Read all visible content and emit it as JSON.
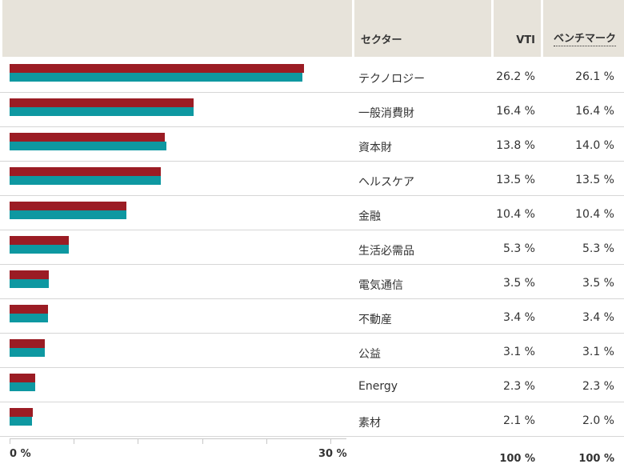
{
  "header": {
    "sector": "セクター",
    "vti": "VTI",
    "benchmark": "ベンチマーク"
  },
  "colors": {
    "vti": "#9b1c24",
    "benchmark": "#0e98a1",
    "header_bg": "#e7e3da"
  },
  "axis": {
    "min_label": "0 %",
    "max_label": "30 %"
  },
  "totals": {
    "vti": "100 %",
    "benchmark": "100 %"
  },
  "rows": [
    {
      "sector": "テクノロジー",
      "vti_label": "26.2 %",
      "bench_label": "26.1 %"
    },
    {
      "sector": "一般消費財",
      "vti_label": "16.4 %",
      "bench_label": "16.4 %"
    },
    {
      "sector": "資本財",
      "vti_label": "13.8 %",
      "bench_label": "14.0 %"
    },
    {
      "sector": "ヘルスケア",
      "vti_label": "13.5 %",
      "bench_label": "13.5 %"
    },
    {
      "sector": "金融",
      "vti_label": "10.4 %",
      "bench_label": "10.4 %"
    },
    {
      "sector": "生活必需品",
      "vti_label": "5.3 %",
      "bench_label": "5.3 %"
    },
    {
      "sector": "電気通信",
      "vti_label": "3.5 %",
      "bench_label": "3.5 %"
    },
    {
      "sector": "不動産",
      "vti_label": "3.4 %",
      "bench_label": "3.4 %"
    },
    {
      "sector": "公益",
      "vti_label": "3.1 %",
      "bench_label": "3.1 %"
    },
    {
      "sector": "Energy",
      "vti_label": "2.3 %",
      "bench_label": "2.3 %"
    },
    {
      "sector": "素材",
      "vti_label": "2.1 %",
      "bench_label": "2.0 %"
    }
  ],
  "chart_data": {
    "type": "bar",
    "orientation": "horizontal",
    "categories": [
      "テクノロジー",
      "一般消費財",
      "資本財",
      "ヘルスケア",
      "金融",
      "生活必需品",
      "電気通信",
      "不動産",
      "公益",
      "Energy",
      "素材"
    ],
    "series": [
      {
        "name": "VTI",
        "values": [
          26.2,
          16.4,
          13.8,
          13.5,
          10.4,
          5.3,
          3.5,
          3.4,
          3.1,
          2.3,
          2.1
        ]
      },
      {
        "name": "ベンチマーク",
        "values": [
          26.1,
          16.4,
          14.0,
          13.5,
          10.4,
          5.3,
          3.5,
          3.4,
          3.1,
          2.3,
          2.0
        ]
      }
    ],
    "xlim": [
      0,
      30
    ],
    "grid": false
  }
}
